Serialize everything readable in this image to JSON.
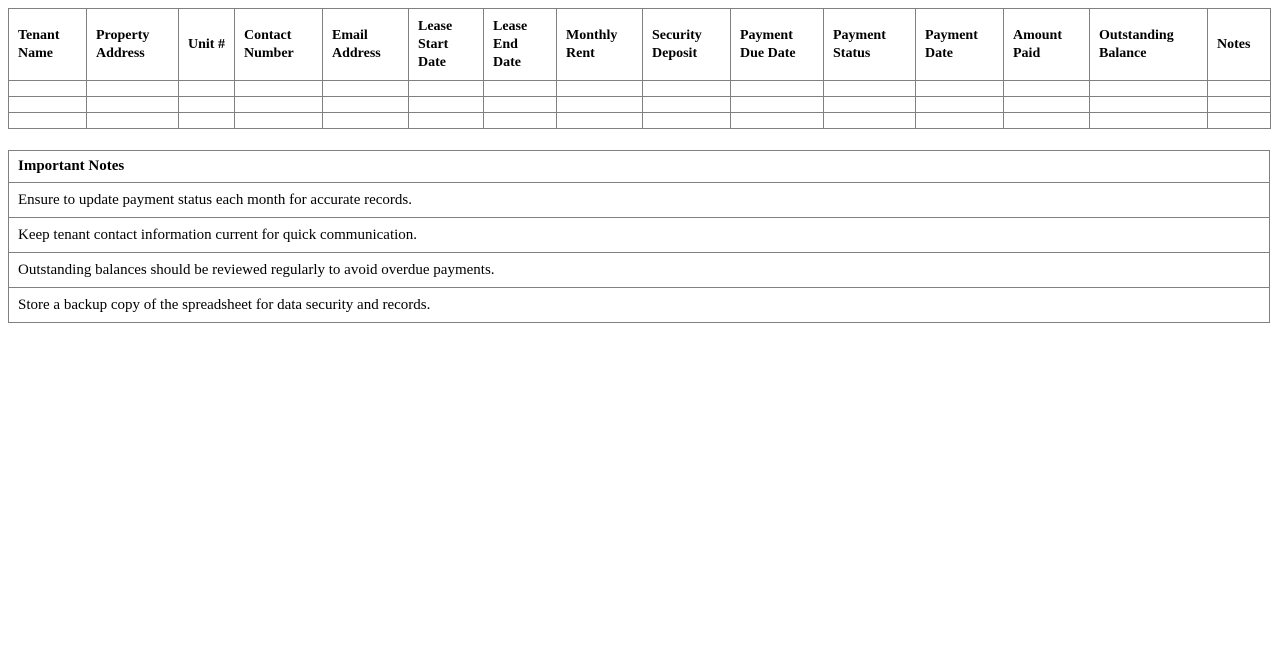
{
  "colors": {
    "border": "#808080",
    "text": "#000000",
    "background": "#ffffff"
  },
  "tracker_table": {
    "columns": [
      "Tenant Name",
      "Property Address",
      "Unit #",
      "Contact Number",
      "Email Address",
      "Lease Start Date",
      "Lease End Date",
      "Monthly Rent",
      "Security Deposit",
      "Payment Due Date",
      "Payment Status",
      "Payment Date",
      "Amount Paid",
      "Outstanding Balance",
      "Notes"
    ],
    "rows": [
      [
        "",
        "",
        "",
        "",
        "",
        "",
        "",
        "",
        "",
        "",
        "",
        "",
        "",
        "",
        ""
      ],
      [
        "",
        "",
        "",
        "",
        "",
        "",
        "",
        "",
        "",
        "",
        "",
        "",
        "",
        "",
        ""
      ],
      [
        "",
        "",
        "",
        "",
        "",
        "",
        "",
        "",
        "",
        "",
        "",
        "",
        "",
        "",
        ""
      ]
    ]
  },
  "notes_table": {
    "header": "Important Notes",
    "notes": [
      "Ensure to update payment status each month for accurate records.",
      "Keep tenant contact information current for quick communication.",
      "Outstanding balances should be reviewed regularly to avoid overdue payments.",
      "Store a backup copy of the spreadsheet for data security and records."
    ]
  }
}
